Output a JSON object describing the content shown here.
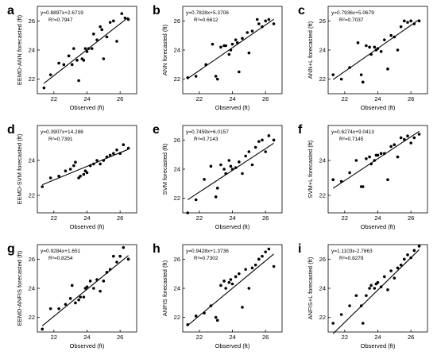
{
  "chart_data": [
    {
      "type": "scatter",
      "panel_label": "a",
      "xlabel": "Observed (ft)",
      "ylabel": "EEMD-ANN forecasted (ft)",
      "xlim": [
        21,
        27
      ],
      "ylim": [
        21,
        27
      ],
      "xticks": [
        22,
        24,
        26
      ],
      "yticks": [
        22,
        24,
        26
      ],
      "equation": "y=0.8897x+2.6719",
      "r2": "R²=0.7947",
      "fit": {
        "slope": 0.8897,
        "intercept": 2.6719
      },
      "points": [
        [
          21.4,
          21.4
        ],
        [
          21.8,
          22.3
        ],
        [
          22.3,
          23.1
        ],
        [
          22.6,
          23.0
        ],
        [
          22.9,
          23.6
        ],
        [
          23.1,
          23.0
        ],
        [
          23.2,
          24.1
        ],
        [
          23.4,
          23.3
        ],
        [
          23.5,
          21.9
        ],
        [
          23.7,
          23.4
        ],
        [
          23.8,
          23.3
        ],
        [
          23.9,
          24.1
        ],
        [
          24.0,
          23.9
        ],
        [
          24.1,
          24.1
        ],
        [
          24.3,
          24.1
        ],
        [
          24.4,
          25.1
        ],
        [
          24.6,
          24.7
        ],
        [
          24.8,
          25.6
        ],
        [
          24.9,
          25.4
        ],
        [
          25.0,
          23.4
        ],
        [
          25.2,
          24.9
        ],
        [
          25.4,
          25.9
        ],
        [
          25.6,
          26.0
        ],
        [
          25.8,
          24.6
        ],
        [
          26.1,
          26.5
        ],
        [
          26.3,
          26.2
        ],
        [
          26.5,
          26.1
        ]
      ]
    },
    {
      "type": "scatter",
      "panel_label": "b",
      "xlabel": "Observed (ft)",
      "ylabel": "ANN forecasted (ft)",
      "xlim": [
        21,
        27
      ],
      "ylim": [
        21,
        27
      ],
      "xticks": [
        22,
        24,
        26
      ],
      "yticks": [
        22,
        24,
        26
      ],
      "equation": "y=0.7828x+5.3706",
      "r2": "R²=0.6612",
      "fit": {
        "slope": 0.7828,
        "intercept": 5.3706
      },
      "points": [
        [
          21.3,
          22.1
        ],
        [
          21.8,
          22.2
        ],
        [
          22.4,
          23.0
        ],
        [
          22.8,
          24.4
        ],
        [
          23.0,
          22.2
        ],
        [
          23.1,
          22.0
        ],
        [
          23.3,
          24.2
        ],
        [
          23.5,
          24.3
        ],
        [
          23.6,
          24.3
        ],
        [
          23.8,
          23.7
        ],
        [
          23.9,
          24.0
        ],
        [
          24.0,
          24.4
        ],
        [
          24.2,
          24.7
        ],
        [
          24.3,
          24.5
        ],
        [
          24.4,
          22.5
        ],
        [
          24.6,
          24.8
        ],
        [
          24.9,
          25.2
        ],
        [
          25.0,
          23.8
        ],
        [
          25.2,
          25.3
        ],
        [
          25.5,
          26.1
        ],
        [
          25.6,
          25.8
        ],
        [
          25.8,
          25.6
        ],
        [
          26.0,
          26.0
        ],
        [
          26.2,
          26.1
        ],
        [
          26.5,
          25.8
        ]
      ]
    },
    {
      "type": "scatter",
      "panel_label": "c",
      "xlabel": "Observed (ft)",
      "ylabel": "ANN+L forecasted (ft)",
      "xlim": [
        21,
        27
      ],
      "ylim": [
        21,
        27
      ],
      "xticks": [
        22,
        24,
        26
      ],
      "yticks": [
        22,
        24,
        26
      ],
      "equation": "y=0.7936x+5.0679",
      "r2": "R²=0.7037",
      "fit": {
        "slope": 0.7936,
        "intercept": 5.0679
      },
      "points": [
        [
          21.3,
          22.3
        ],
        [
          21.8,
          22.0
        ],
        [
          22.3,
          22.8
        ],
        [
          22.8,
          24.5
        ],
        [
          23.0,
          22.3
        ],
        [
          23.1,
          21.8
        ],
        [
          23.3,
          24.3
        ],
        [
          23.5,
          24.2
        ],
        [
          23.6,
          23.7
        ],
        [
          23.8,
          24.2
        ],
        [
          23.9,
          24.0
        ],
        [
          24.0,
          24.1
        ],
        [
          24.2,
          23.9
        ],
        [
          24.4,
          24.7
        ],
        [
          24.6,
          22.7
        ],
        [
          24.8,
          25.0
        ],
        [
          25.0,
          24.9
        ],
        [
          25.2,
          24.0
        ],
        [
          25.4,
          25.6
        ],
        [
          25.6,
          26.0
        ],
        [
          25.8,
          25.9
        ],
        [
          26.0,
          26.0
        ],
        [
          26.2,
          25.8
        ],
        [
          26.5,
          26.0
        ]
      ]
    },
    {
      "type": "scatter",
      "panel_label": "d",
      "xlabel": "Observed (ft)",
      "ylabel": "EEMD-SVM forecasted (ft)",
      "xlim": [
        21,
        27
      ],
      "ylim": [
        21,
        26
      ],
      "xticks": [
        22,
        24,
        26
      ],
      "yticks": [
        22,
        24
      ],
      "equation": "y=0.3907x+14.286",
      "r2": "R²=0.7391",
      "fit": {
        "slope": 0.3907,
        "intercept": 14.286
      },
      "points": [
        [
          21.3,
          22.5
        ],
        [
          21.8,
          23.0
        ],
        [
          22.3,
          23.1
        ],
        [
          22.7,
          23.4
        ],
        [
          23.0,
          23.5
        ],
        [
          23.2,
          23.7
        ],
        [
          23.3,
          23.9
        ],
        [
          23.5,
          23.0
        ],
        [
          23.6,
          23.1
        ],
        [
          23.8,
          23.2
        ],
        [
          23.9,
          23.4
        ],
        [
          24.0,
          23.3
        ],
        [
          24.2,
          23.7
        ],
        [
          24.4,
          23.8
        ],
        [
          24.6,
          24.0
        ],
        [
          24.8,
          23.8
        ],
        [
          25.0,
          24.0
        ],
        [
          25.2,
          24.2
        ],
        [
          25.4,
          24.3
        ],
        [
          25.6,
          24.4
        ],
        [
          25.8,
          24.6
        ],
        [
          26.0,
          24.4
        ],
        [
          26.2,
          24.9
        ],
        [
          26.5,
          24.7
        ]
      ]
    },
    {
      "type": "scatter",
      "panel_label": "e",
      "xlabel": "Observed (ft)",
      "ylabel": "SVM forecasted (ft)",
      "xlim": [
        21,
        27
      ],
      "ylim": [
        21,
        27
      ],
      "xticks": [
        22,
        24,
        26
      ],
      "yticks": [
        22,
        24,
        26
      ],
      "equation": "y=0.7459x+6.0157",
      "r2": "R²=0.7143",
      "fit": {
        "slope": 0.7459,
        "intercept": 6.0157
      },
      "points": [
        [
          21.3,
          21.0
        ],
        [
          21.8,
          21.9
        ],
        [
          22.3,
          23.3
        ],
        [
          22.7,
          24.2
        ],
        [
          23.0,
          22.1
        ],
        [
          23.1,
          22.7
        ],
        [
          23.3,
          24.3
        ],
        [
          23.5,
          24.0
        ],
        [
          23.6,
          23.7
        ],
        [
          23.8,
          24.6
        ],
        [
          23.9,
          24.2
        ],
        [
          24.0,
          24.0
        ],
        [
          24.2,
          24.1
        ],
        [
          24.4,
          24.5
        ],
        [
          24.6,
          23.7
        ],
        [
          24.8,
          24.9
        ],
        [
          25.0,
          25.2
        ],
        [
          25.2,
          24.3
        ],
        [
          25.4,
          25.5
        ],
        [
          25.6,
          25.9
        ],
        [
          25.8,
          26.0
        ],
        [
          26.0,
          25.2
        ],
        [
          26.2,
          26.3
        ],
        [
          26.5,
          26.0
        ]
      ]
    },
    {
      "type": "scatter",
      "panel_label": "f",
      "xlabel": "Observed (ft)",
      "ylabel": "SVM+L forecasted (ft)",
      "xlim": [
        21,
        27
      ],
      "ylim": [
        21,
        26
      ],
      "xticks": [
        22,
        24,
        26
      ],
      "yticks": [
        22,
        24
      ],
      "equation": "y=0.6274x+9.0413",
      "r2": "R²=0.7145",
      "fit": {
        "slope": 0.6274,
        "intercept": 9.0413
      },
      "points": [
        [
          21.3,
          22.9
        ],
        [
          21.8,
          22.8
        ],
        [
          22.3,
          23.3
        ],
        [
          22.7,
          24.0
        ],
        [
          23.0,
          22.5
        ],
        [
          23.1,
          22.5
        ],
        [
          23.3,
          24.1
        ],
        [
          23.5,
          24.2
        ],
        [
          23.6,
          23.8
        ],
        [
          23.8,
          24.0
        ],
        [
          23.9,
          24.3
        ],
        [
          24.0,
          24.3
        ],
        [
          24.2,
          24.4
        ],
        [
          24.4,
          24.4
        ],
        [
          24.6,
          22.9
        ],
        [
          24.8,
          24.8
        ],
        [
          25.0,
          24.9
        ],
        [
          25.2,
          24.2
        ],
        [
          25.4,
          25.3
        ],
        [
          25.6,
          25.2
        ],
        [
          25.8,
          25.4
        ],
        [
          26.0,
          25.0
        ],
        [
          26.2,
          25.3
        ],
        [
          26.5,
          25.5
        ]
      ]
    },
    {
      "type": "scatter",
      "panel_label": "g",
      "xlabel": "Observed (ft)",
      "ylabel": "EEMD-ANFIS forecasted (ft)",
      "xlim": [
        21,
        27
      ],
      "ylim": [
        21,
        27
      ],
      "xticks": [
        22,
        24,
        26
      ],
      "yticks": [
        22,
        24,
        26
      ],
      "equation": "y=0.9284x+1.651",
      "r2": "R²=0.8254",
      "fit": {
        "slope": 0.9284,
        "intercept": 1.651
      },
      "points": [
        [
          21.3,
          21.2
        ],
        [
          21.8,
          22.6
        ],
        [
          22.3,
          22.6
        ],
        [
          22.7,
          22.9
        ],
        [
          23.0,
          23.3
        ],
        [
          23.1,
          24.2
        ],
        [
          23.3,
          23.0
        ],
        [
          23.5,
          23.2
        ],
        [
          23.6,
          23.4
        ],
        [
          23.8,
          23.4
        ],
        [
          23.9,
          24.0
        ],
        [
          24.0,
          24.1
        ],
        [
          24.2,
          24.5
        ],
        [
          24.4,
          24.0
        ],
        [
          24.6,
          24.6
        ],
        [
          24.8,
          23.8
        ],
        [
          25.0,
          24.5
        ],
        [
          25.2,
          25.1
        ],
        [
          25.4,
          25.3
        ],
        [
          25.6,
          26.2
        ],
        [
          25.8,
          25.8
        ],
        [
          26.0,
          26.2
        ],
        [
          26.2,
          26.8
        ],
        [
          26.5,
          26.0
        ]
      ]
    },
    {
      "type": "scatter",
      "panel_label": "h",
      "xlabel": "Observed (ft)",
      "ylabel": "ANFIS forecasted (ft)",
      "xlim": [
        21,
        27
      ],
      "ylim": [
        21,
        27
      ],
      "xticks": [
        22,
        24,
        26
      ],
      "yticks": [
        22,
        24,
        26
      ],
      "equation": "y=0.9428x+1.3736",
      "r2": "R²=0.7302",
      "fit": {
        "slope": 0.9428,
        "intercept": 1.3736
      },
      "points": [
        [
          21.3,
          21.5
        ],
        [
          21.8,
          22.1
        ],
        [
          22.3,
          22.3
        ],
        [
          22.7,
          22.8
        ],
        [
          23.0,
          22.0
        ],
        [
          23.1,
          21.8
        ],
        [
          23.3,
          24.2
        ],
        [
          23.5,
          24.5
        ],
        [
          23.6,
          24.0
        ],
        [
          23.8,
          24.4
        ],
        [
          23.9,
          24.6
        ],
        [
          24.0,
          24.3
        ],
        [
          24.2,
          24.8
        ],
        [
          24.4,
          25.0
        ],
        [
          24.6,
          22.7
        ],
        [
          24.8,
          25.3
        ],
        [
          25.0,
          24.0
        ],
        [
          25.2,
          25.4
        ],
        [
          25.4,
          25.6
        ],
        [
          25.6,
          26.0
        ],
        [
          25.8,
          26.2
        ],
        [
          26.0,
          26.5
        ],
        [
          26.2,
          26.7
        ],
        [
          26.5,
          25.5
        ]
      ]
    },
    {
      "type": "scatter",
      "panel_label": "i",
      "xlabel": "Observed (ft)",
      "ylabel": "ANFIS+L forecasted (ft)",
      "xlim": [
        21,
        27
      ],
      "ylim": [
        21,
        27
      ],
      "xticks": [
        22,
        24,
        26
      ],
      "yticks": [
        22,
        24,
        26
      ],
      "equation": "y=1.1103x-2.7663",
      "r2": "R²=0.8278",
      "fit": {
        "slope": 1.1103,
        "intercept": -2.7663
      },
      "points": [
        [
          21.3,
          21.6
        ],
        [
          21.8,
          22.2
        ],
        [
          22.3,
          22.8
        ],
        [
          22.7,
          23.5
        ],
        [
          23.0,
          22.8
        ],
        [
          23.1,
          21.6
        ],
        [
          23.3,
          23.5
        ],
        [
          23.5,
          24.0
        ],
        [
          23.6,
          24.2
        ],
        [
          23.8,
          24.0
        ],
        [
          23.9,
          24.3
        ],
        [
          24.0,
          24.4
        ],
        [
          24.2,
          24.1
        ],
        [
          24.4,
          24.8
        ],
        [
          24.6,
          23.9
        ],
        [
          24.8,
          25.2
        ],
        [
          25.0,
          24.7
        ],
        [
          25.2,
          25.4
        ],
        [
          25.4,
          25.6
        ],
        [
          25.6,
          26.0
        ],
        [
          25.8,
          26.3
        ],
        [
          26.0,
          26.1
        ],
        [
          26.2,
          26.6
        ],
        [
          26.5,
          26.9
        ]
      ]
    }
  ]
}
